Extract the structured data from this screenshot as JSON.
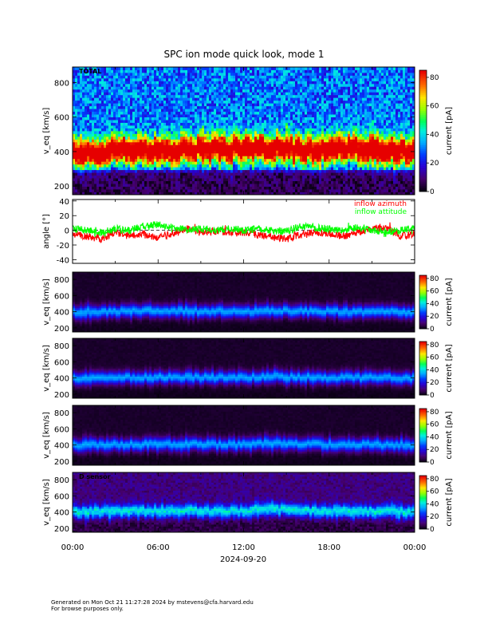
{
  "title": "SPC ion mode quick look, mode 1",
  "footer": {
    "line1": "Generated on Mon Oct 21 11:27:28 2024 by mstevens@cfa.harvard.edu",
    "line2": "For browse purposes only."
  },
  "chart_data": [
    {
      "type": "heatmap",
      "panel_label": "TOTAL",
      "ylabel": "v_eq [km/s]",
      "ylim": [
        150,
        890
      ],
      "yticks": [
        "200",
        "400",
        "600",
        "800"
      ],
      "xlim_hours": [
        0,
        24
      ],
      "colorbar": {
        "label": "current [pA]",
        "range": [
          0,
          85
        ],
        "ticks": [
          "0",
          "20",
          "40",
          "60",
          "80"
        ]
      },
      "ridge_kms": [
        [
          0,
          400
        ],
        [
          1.5,
          380
        ],
        [
          3,
          405
        ],
        [
          6,
          400
        ],
        [
          9,
          410
        ],
        [
          12,
          410
        ],
        [
          14,
          420
        ],
        [
          16,
          400
        ],
        [
          19,
          410
        ],
        [
          22,
          405
        ],
        [
          24,
          400
        ]
      ],
      "ridge_peak_pa": 80,
      "background_pa": 30
    },
    {
      "type": "line",
      "ylabel": "angle [°]",
      "ylim": [
        -45,
        42
      ],
      "yticks": [
        "-40",
        "-20",
        "0",
        "20",
        "40"
      ],
      "xlim_hours": [
        0,
        24
      ],
      "series": [
        {
          "name": "inflow azimuth",
          "color": "#ff0000",
          "x": [
            0,
            1,
            2,
            3,
            4,
            5,
            6,
            7,
            8,
            9,
            10,
            11,
            12,
            13,
            14,
            15,
            16,
            17,
            18,
            19,
            20,
            21,
            22,
            23,
            24
          ],
          "y": [
            -5,
            -8,
            -12,
            -3,
            -8,
            -5,
            -10,
            -4,
            2,
            -3,
            -1,
            -3,
            -2,
            -6,
            -8,
            -12,
            -5,
            -3,
            -5,
            -8,
            -3,
            2,
            4,
            -8,
            -5
          ]
        },
        {
          "name": "inflow attitude",
          "color": "#00ff00",
          "x": [
            0,
            1,
            2,
            3,
            4,
            5,
            6,
            7,
            8,
            9,
            10,
            11,
            12,
            13,
            14,
            15,
            16,
            17,
            18,
            19,
            20,
            21,
            22,
            23,
            24
          ],
          "y": [
            2,
            0,
            -3,
            2,
            0,
            6,
            8,
            4,
            1,
            2,
            0,
            3,
            0,
            2,
            0,
            -2,
            6,
            4,
            2,
            0,
            4,
            0,
            -2,
            0,
            3
          ]
        }
      ]
    },
    {
      "type": "heatmap",
      "panel_label": "",
      "ylabel": "v_eq [km/s]",
      "ylim": [
        150,
        890
      ],
      "yticks": [
        "200",
        "400",
        "600",
        "800"
      ],
      "xlim_hours": [
        0,
        24
      ],
      "colorbar": {
        "label": "current [pA]",
        "range": [
          0,
          85
        ],
        "ticks": [
          "0",
          "20",
          "40",
          "60",
          "80"
        ]
      },
      "ridge_kms": [
        [
          0,
          400
        ],
        [
          3,
          405
        ],
        [
          6,
          410
        ],
        [
          12,
          405
        ],
        [
          14,
          420
        ],
        [
          18,
          405
        ],
        [
          24,
          400
        ]
      ],
      "ridge_peak_pa": 32,
      "background_pa": 2
    },
    {
      "type": "heatmap",
      "panel_label": "",
      "ylabel": "v_eq [km/s]",
      "ylim": [
        150,
        890
      ],
      "yticks": [
        "200",
        "400",
        "600",
        "800"
      ],
      "xlim_hours": [
        0,
        24
      ],
      "colorbar": {
        "label": "current [pA]",
        "range": [
          0,
          85
        ],
        "ticks": [
          "0",
          "20",
          "40",
          "60",
          "80"
        ]
      },
      "ridge_kms": [
        [
          0,
          400
        ],
        [
          3,
          405
        ],
        [
          6,
          410
        ],
        [
          12,
          405
        ],
        [
          14,
          420
        ],
        [
          18,
          405
        ],
        [
          24,
          400
        ]
      ],
      "ridge_peak_pa": 32,
      "background_pa": 2
    },
    {
      "type": "heatmap",
      "panel_label": "",
      "ylabel": "v_eq [km/s]",
      "ylim": [
        150,
        890
      ],
      "yticks": [
        "200",
        "400",
        "600",
        "800"
      ],
      "xlim_hours": [
        0,
        24
      ],
      "colorbar": {
        "label": "current [pA]",
        "range": [
          0,
          85
        ],
        "ticks": [
          "0",
          "20",
          "40",
          "60",
          "80"
        ]
      },
      "ridge_kms": [
        [
          0,
          400
        ],
        [
          3,
          405
        ],
        [
          6,
          410
        ],
        [
          12,
          405
        ],
        [
          14,
          420
        ],
        [
          18,
          405
        ],
        [
          24,
          400
        ]
      ],
      "ridge_peak_pa": 32,
      "background_pa": 2
    },
    {
      "type": "heatmap",
      "panel_label": "D sensor",
      "ylabel": "v_eq [km/s]",
      "ylim": [
        150,
        890
      ],
      "yticks": [
        "200",
        "400",
        "600",
        "800"
      ],
      "xlim_hours": [
        0,
        24
      ],
      "colorbar": {
        "label": "current [pA]",
        "range": [
          0,
          85
        ],
        "ticks": [
          "0",
          "20",
          "40",
          "60",
          "80"
        ]
      },
      "ridge_kms": [
        [
          0,
          400
        ],
        [
          3,
          405
        ],
        [
          6,
          410
        ],
        [
          12,
          405
        ],
        [
          14,
          430
        ],
        [
          18,
          405
        ],
        [
          24,
          400
        ]
      ],
      "ridge_peak_pa": 34,
      "background_pa": 9
    }
  ],
  "xaxis": {
    "ticks": [
      "00:00",
      "06:00",
      "12:00",
      "18:00",
      "00:00"
    ],
    "date_label": "2024-09-20"
  }
}
